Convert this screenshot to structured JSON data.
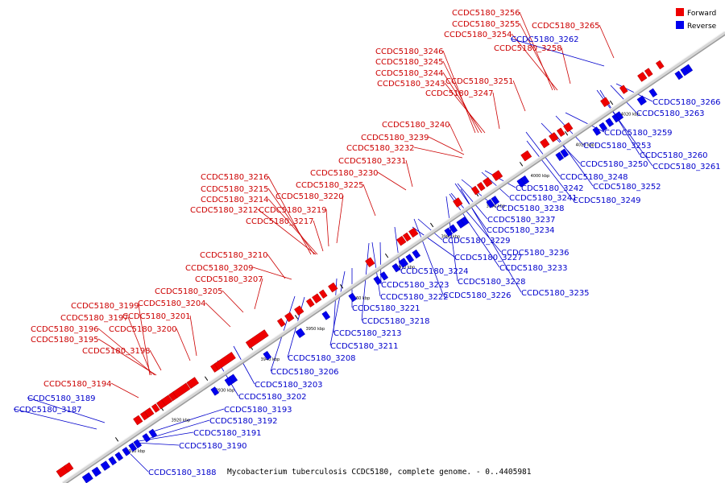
{
  "legend": {
    "forward_label": "Forward",
    "reverse_label": "Reverse",
    "forward_color": "#ee0000",
    "reverse_color": "#0000ee"
  },
  "caption": "Mycobacterium tuberculosis CCDC5180, complete genome. - 0..4405981",
  "ticks": [
    "3910 kbp",
    "3920 kbp",
    "3930 kbp",
    "3940 kbp",
    "3950 kbp",
    "3960 kbp",
    "3970 kbp",
    "3980 kbp",
    "3990 kbp",
    "4000 kbp",
    "4010 kbp",
    "4020 kbp"
  ],
  "forward_labels": [
    "CCDC5180_3256",
    "CCDC5180_3255",
    "CCDC5180_3254",
    "CCDC5180_3265",
    "CCDC5180_3258",
    "CCDC5180_3246",
    "CCDC5180_3245",
    "CCDC5180_3244",
    "CCDC5180_3243",
    "CCDC5180_3251",
    "CCDC5180_3247",
    "CCDC5180_3240",
    "CCDC5180_3239",
    "CCDC5180_3232",
    "CCDC5180_3231",
    "CCDC5180_3230",
    "CCDC5180_3216",
    "CCDC5180_3225",
    "CCDC5180_3215",
    "CCDC5180_3220",
    "CCDC5180_3214",
    "CCDC5180_3212",
    "CCDC5180_3219",
    "CCDC5180_3217",
    "CCDC5180_3210",
    "CCDC5180_3209",
    "CCDC5180_3207",
    "CCDC5180_3205",
    "CCDC5180_3199",
    "CCDC5180_3204",
    "CCDC5180_3197",
    "CCDC5180_3201",
    "CCDC5180_3196",
    "CCDC5180_3200",
    "CCDC5180_3195",
    "CCDC5180_3198",
    "CCDC5180_3194"
  ],
  "reverse_labels": [
    "CCDC5180_3262",
    "CCDC5180_3266",
    "CCDC5180_3263",
    "CCDC5180_3259",
    "CCDC5180_3253",
    "CCDC5180_3260",
    "CCDC5180_3261",
    "CCDC5180_3250",
    "CCDC5180_3248",
    "CCDC5180_3252",
    "CCDC5180_3242",
    "CCDC5180_3241",
    "CCDC5180_3249",
    "CCDC5180_3238",
    "CCDC5180_3237",
    "CCDC5180_3234",
    "CCDC5180_3229",
    "CCDC5180_3236",
    "CCDC5180_3227",
    "CCDC5180_3233",
    "CCDC5180_3224",
    "CCDC5180_3228",
    "CCDC5180_3223",
    "CCDC5180_3226",
    "CCDC5180_3235",
    "CCDC5180_3222",
    "CCDC5180_3221",
    "CCDC5180_3218",
    "CCDC5180_3213",
    "CCDC5180_3211",
    "CCDC5180_3208",
    "CCDC5180_3206",
    "CCDC5180_3203",
    "CCDC5180_3202",
    "CCDC5180_3193",
    "CCDC5180_3192",
    "CCDC5180_3191",
    "CCDC5180_3190",
    "CCDC5180_3189",
    "CCDC5180_3187",
    "CCDC5180_3188"
  ]
}
